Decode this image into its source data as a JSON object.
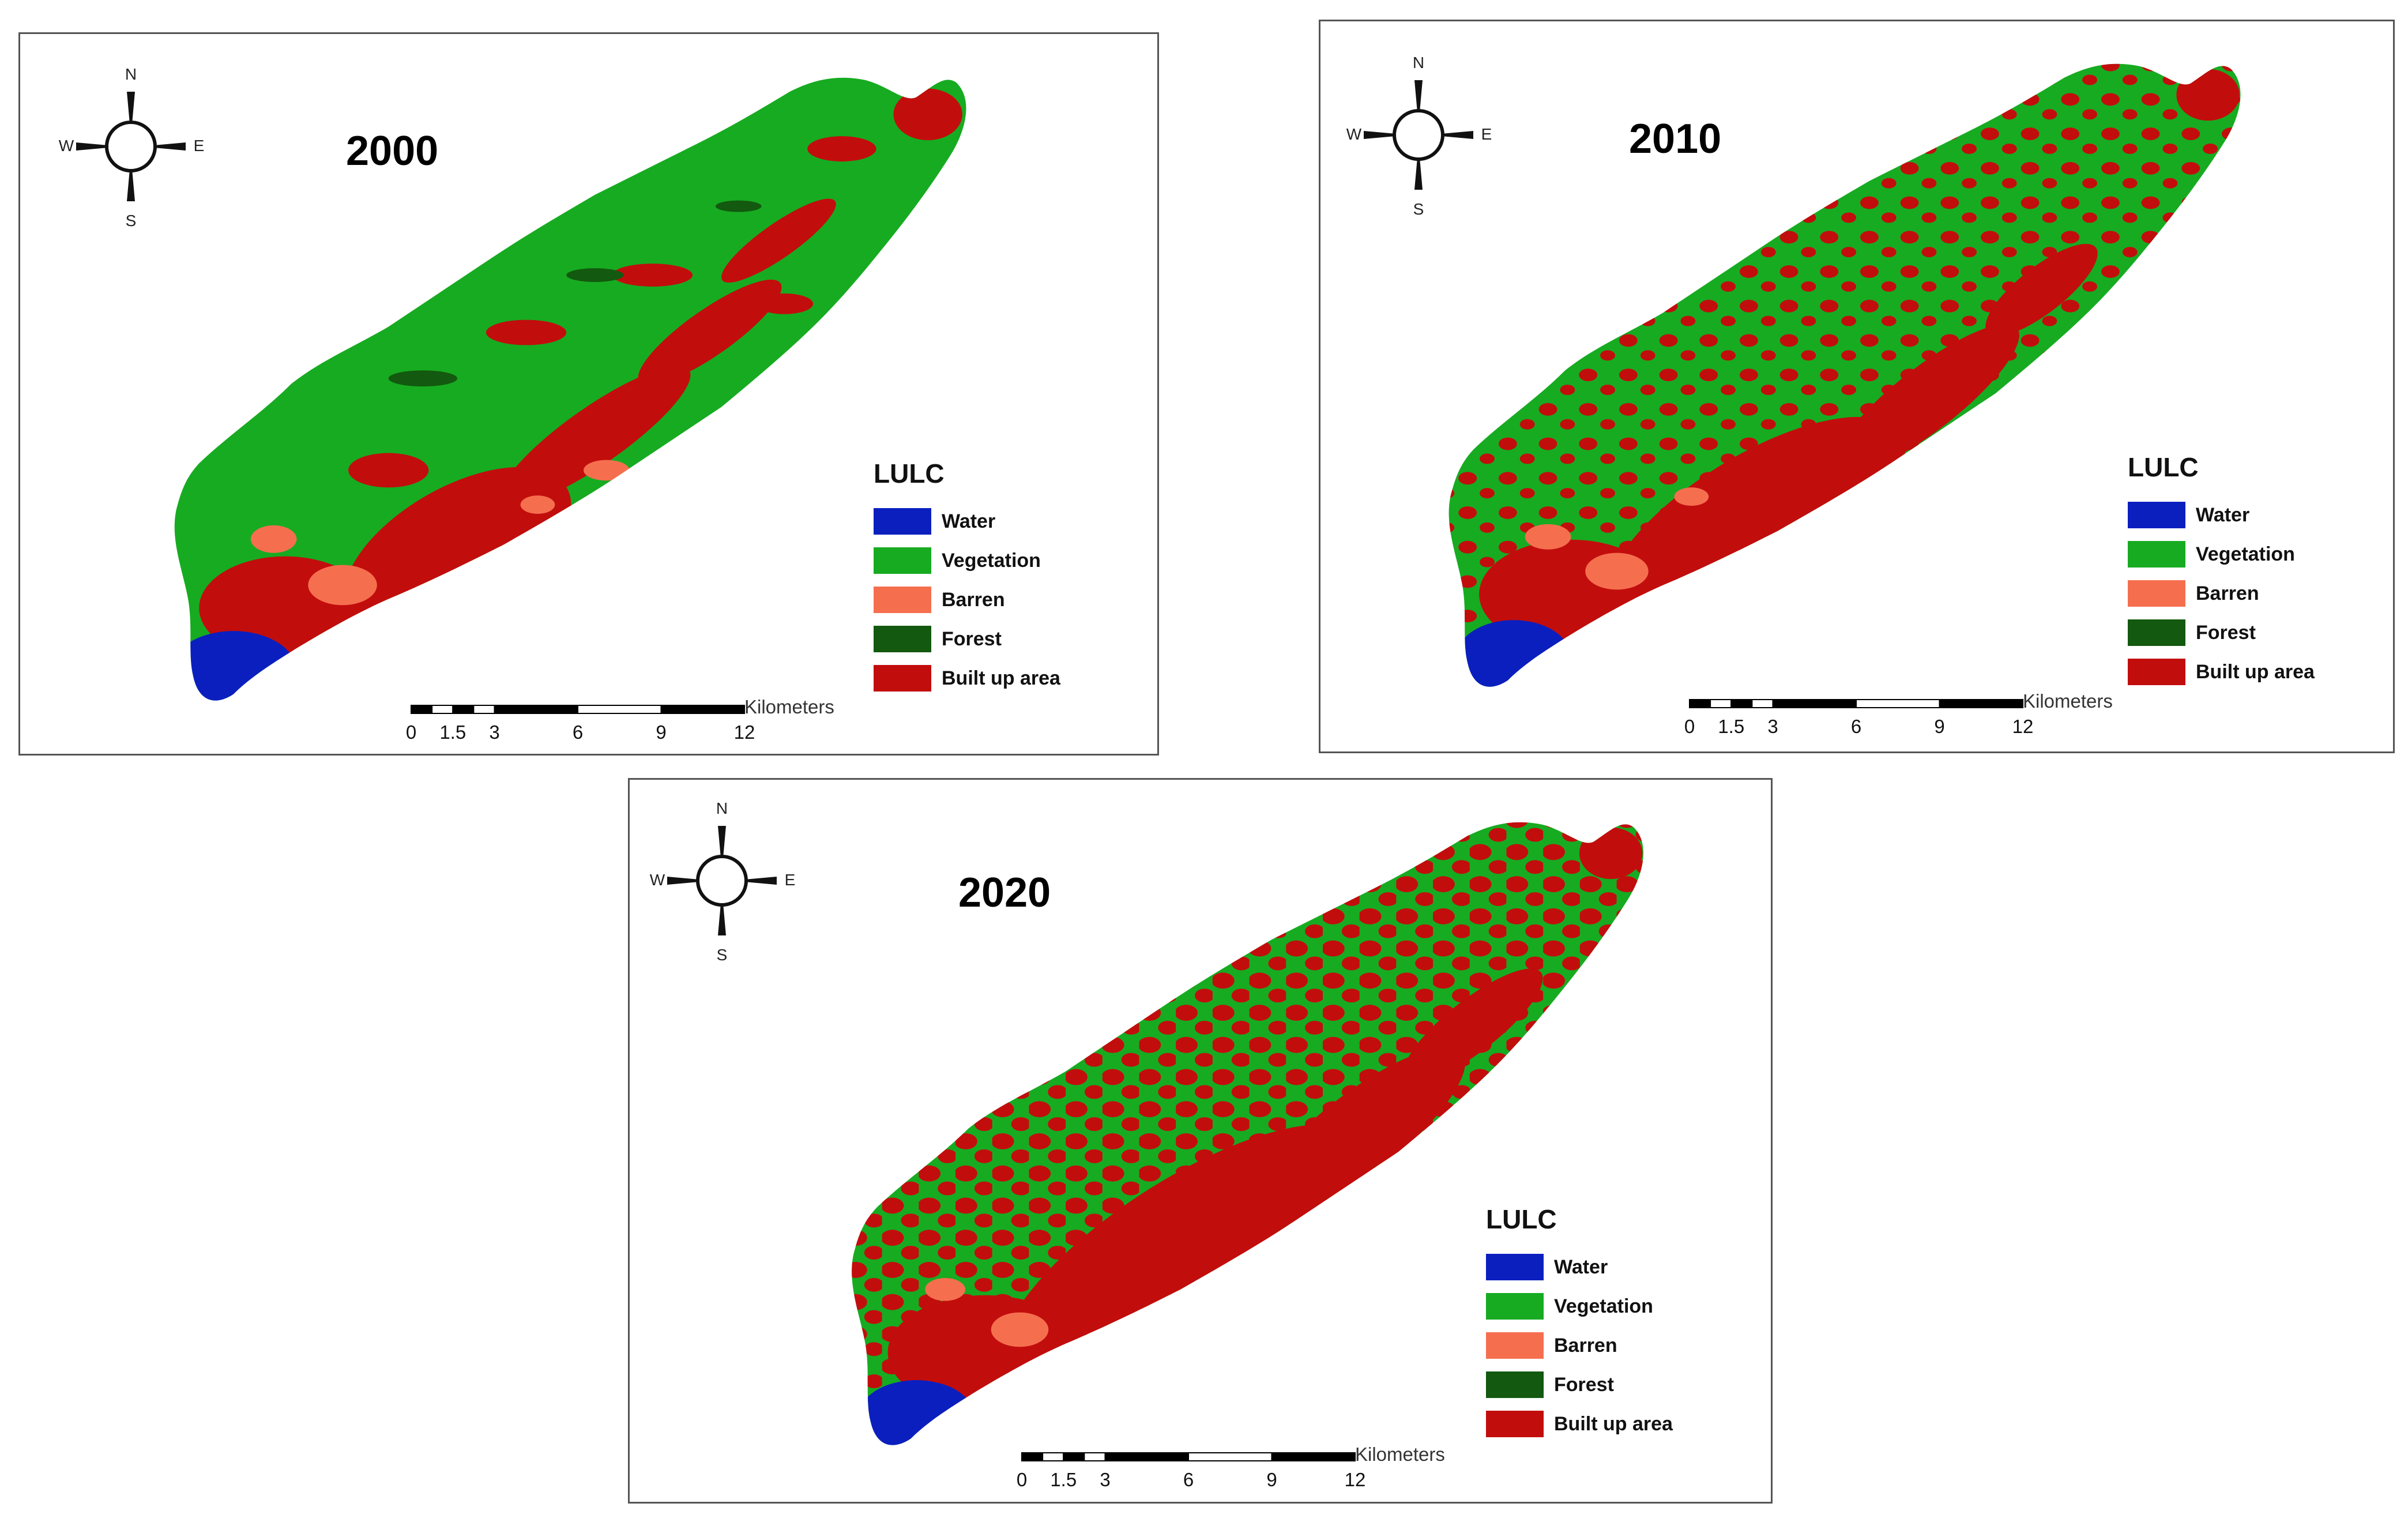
{
  "maps": [
    {
      "year": "2000",
      "id": "2000"
    },
    {
      "year": "2010",
      "id": "2010"
    },
    {
      "year": "2020",
      "id": "2020"
    }
  ],
  "compass": {
    "n": "N",
    "s": "S",
    "e": "E",
    "w": "W"
  },
  "legend": {
    "title": "LULC",
    "items": [
      {
        "label": "Water",
        "color": "#0b1fbf"
      },
      {
        "label": "Vegetation",
        "color": "#17ab21"
      },
      {
        "label": "Barren",
        "color": "#f56f4f"
      },
      {
        "label": "Forest",
        "color": "#13590f"
      },
      {
        "label": "Built up area",
        "color": "#c20d0d"
      }
    ]
  },
  "scale": {
    "unit": "Kilometers",
    "ticks": [
      "0",
      "1.5",
      "3",
      "6",
      "9",
      "12"
    ]
  }
}
